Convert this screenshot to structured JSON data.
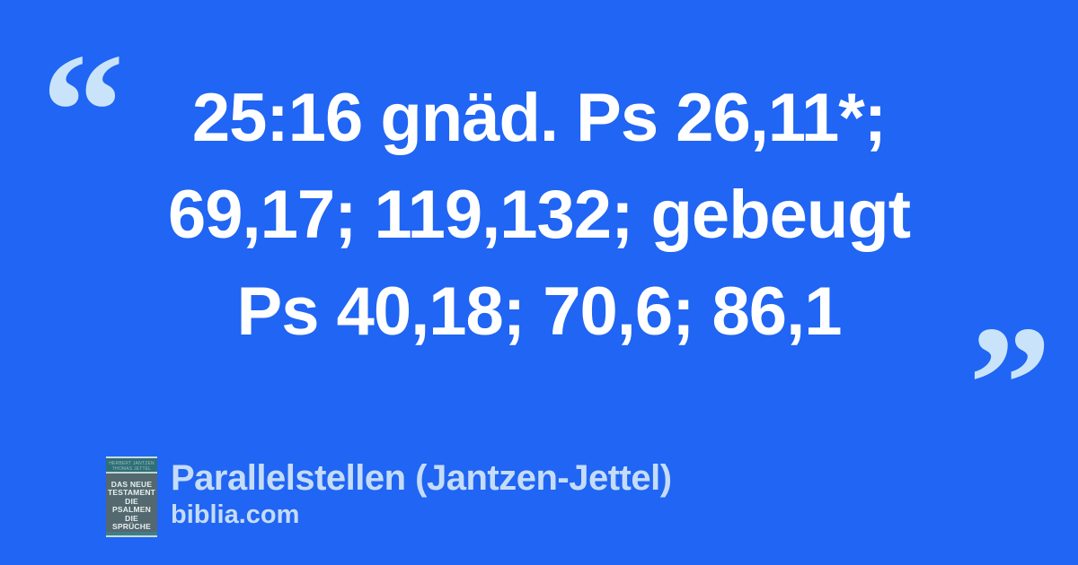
{
  "colors": {
    "background": "#2065f3",
    "quote_mark": "#c9e4fa",
    "quote_text": "#ffffff",
    "footer_text": "#c4dcf7",
    "cover_body": "#53696f",
    "cover_band": "#2e6f78",
    "cover_stripe": "#3f7e85",
    "cover_edge": "#c8dcda"
  },
  "quote": {
    "open_mark": "“",
    "close_mark": "”",
    "lines": [
      "25:16 gnäd. Ps 26,11*;",
      "69,17; 119,132; gebeugt",
      "Ps 40,18; 70,6; 86,1"
    ]
  },
  "footer": {
    "source_title": "Parallelstellen (Jantzen-Jettel)",
    "site": "biblia.com",
    "book_cover": {
      "author_lines": [
        "HERBERT JANTZEN",
        "THOMAS JETTEL"
      ],
      "title_lines": [
        "DAS NEUE",
        "TESTAMENT",
        "DIE PSALMEN",
        "DIE SPRÜCHE"
      ]
    }
  }
}
